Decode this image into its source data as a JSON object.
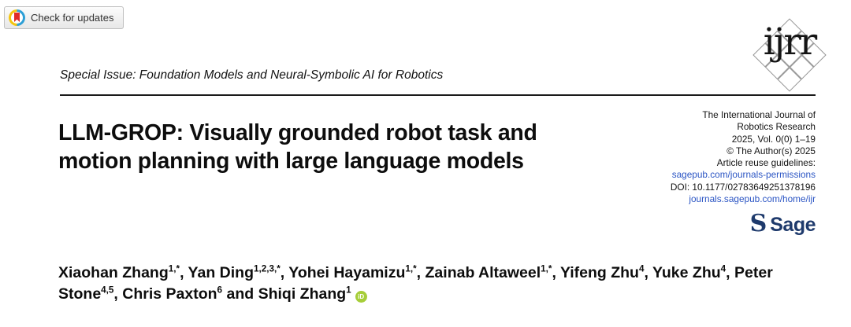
{
  "badge": {
    "label": "Check for updates"
  },
  "header": {
    "special_issue": "Special Issue: Foundation Models and Neural-Symbolic AI for Robotics",
    "ijrr_logo_text": "ijrr"
  },
  "title": "LLM-GROP: Visually grounded robot task and motion planning with large language models",
  "journal_info": {
    "lines": [
      {
        "text": "The International Journal of",
        "type": "plain"
      },
      {
        "text": "Robotics Research",
        "type": "plain"
      },
      {
        "text": "2025, Vol. 0(0) 1–19",
        "type": "plain"
      },
      {
        "text": "© The Author(s) 2025",
        "type": "plain"
      },
      {
        "text": "Article reuse guidelines:",
        "type": "plain"
      },
      {
        "text": "sagepub.com/journals-permissions",
        "type": "link"
      },
      {
        "text": "DOI: 10.1177/02783649251378196",
        "type": "plain"
      },
      {
        "text": "journals.sagepub.com/home/ijr",
        "type": "link"
      }
    ],
    "publisher_initial": "S",
    "publisher": "Sage"
  },
  "authors": {
    "list": [
      {
        "name": "Xiaohan Zhang",
        "sup": "1,*"
      },
      {
        "name": "Yan Ding",
        "sup": "1,2,3,*"
      },
      {
        "name": "Yohei Hayamizu",
        "sup": "1,*"
      },
      {
        "name": "Zainab Altaweel",
        "sup": "1,*"
      },
      {
        "name": "Yifeng Zhu",
        "sup": "4"
      },
      {
        "name": "Yuke Zhu",
        "sup": "4"
      },
      {
        "name": "Peter Stone",
        "sup": "4,5"
      },
      {
        "name": "Chris Paxton",
        "sup": "6"
      },
      {
        "name": "Shiqi Zhang",
        "sup": "1",
        "orcid": true
      }
    ],
    "orcid_label": "iD"
  },
  "colors": {
    "link_blue": "#2b55c4",
    "sage_navy": "#1e3a6c",
    "orcid_green": "#a6ce39"
  }
}
